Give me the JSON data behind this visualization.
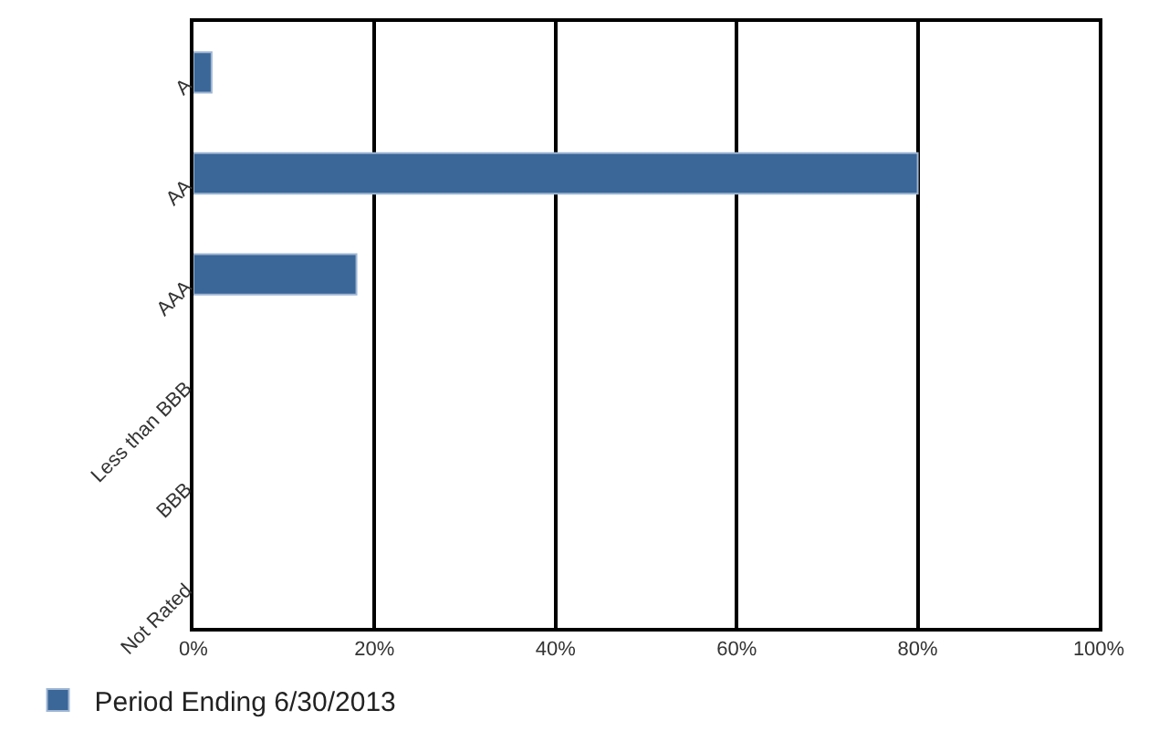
{
  "chart_data": {
    "type": "bar",
    "orientation": "horizontal",
    "categories": [
      "A",
      "AA",
      "AAA",
      "Less than BBB",
      "BBB",
      "Not Rated"
    ],
    "series": [
      {
        "name": "Period Ending 6/30/2013",
        "color": "#3a6698",
        "values": [
          2,
          80,
          18,
          null,
          null,
          null
        ]
      }
    ],
    "xlim": [
      0,
      100
    ],
    "xticks": [
      {
        "value": 0,
        "label": "0%"
      },
      {
        "value": 20,
        "label": "20%"
      },
      {
        "value": 40,
        "label": "40%"
      },
      {
        "value": 60,
        "label": "60%"
      },
      {
        "value": 80,
        "label": "80%"
      },
      {
        "value": 100,
        "label": "100%"
      }
    ],
    "grid": "x",
    "legend": "bottom left"
  }
}
